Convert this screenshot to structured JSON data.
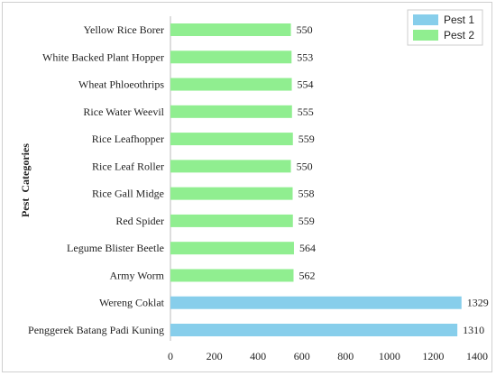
{
  "chart_data": {
    "type": "bar",
    "orientation": "horizontal",
    "categories": [
      "Yellow Rice Borer",
      "White Backed Plant Hopper",
      "Wheat Phloeothrips",
      "Rice Water Weevil",
      "Rice Leafhopper",
      "Rice Leaf Roller",
      "Rice Gall Midge",
      "Red Spider",
      "Legume Blister Beetle",
      "Army Worm",
      "Wereng Coklat",
      "Penggerek Batang Padi Kuning"
    ],
    "values": [
      550,
      553,
      554,
      555,
      559,
      550,
      558,
      559,
      564,
      562,
      1329,
      1310
    ],
    "bar_series": [
      "Pest 2",
      "Pest 2",
      "Pest 2",
      "Pest 2",
      "Pest 2",
      "Pest 2",
      "Pest 2",
      "Pest 2",
      "Pest 2",
      "Pest 2",
      "Pest 1",
      "Pest 1"
    ],
    "series": [
      {
        "name": "Pest 1",
        "color": "#87ceeb"
      },
      {
        "name": "Pest 2",
        "color": "#90ee90"
      }
    ],
    "xlim": [
      0,
      1400
    ],
    "xticks": [
      "0",
      "200",
      "400",
      "600",
      "800",
      "1000",
      "1200",
      "1400"
    ],
    "ylabel": "Pest  Categories",
    "xlabel": "",
    "title": "",
    "grid": false,
    "legend_position": "top-right"
  }
}
